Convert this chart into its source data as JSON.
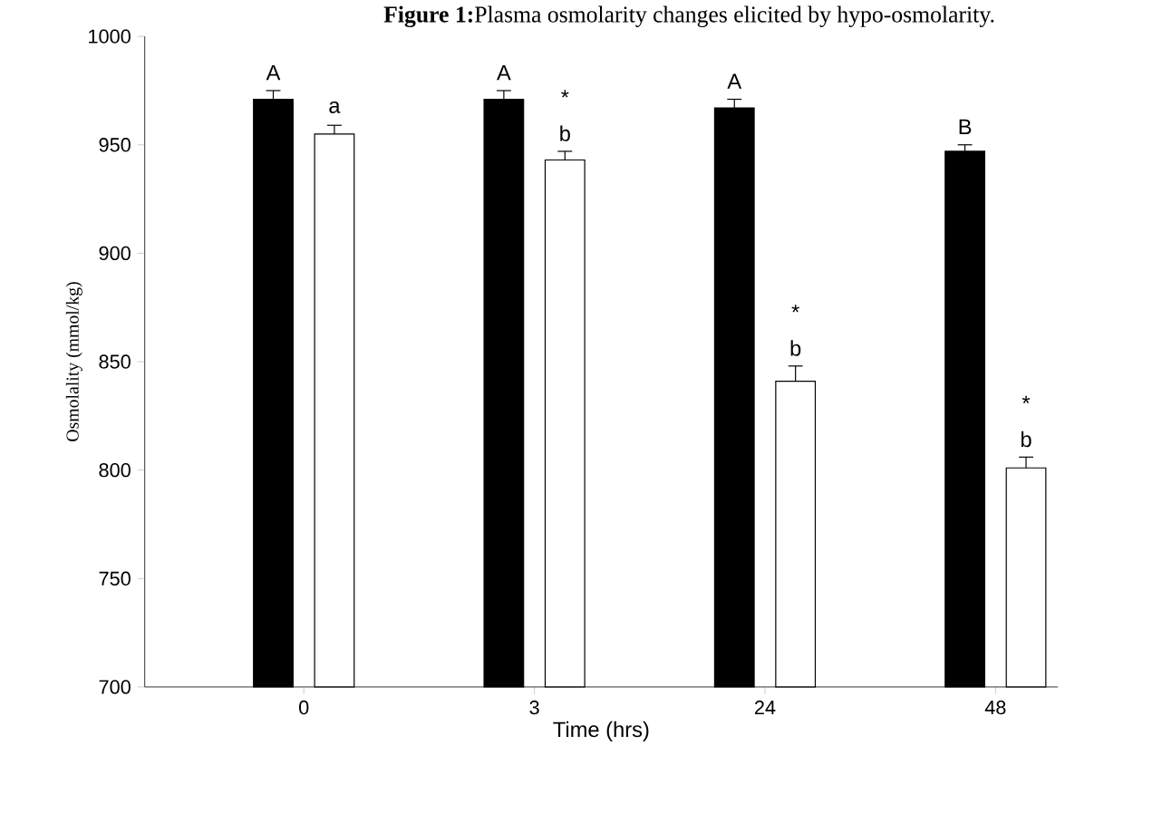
{
  "chart_data": {
    "type": "bar",
    "title": "**Figure 1:**Plasma osmolarity changes elicited by hypo-osmolarity.",
    "xlabel": "Time (hrs)",
    "ylabel": "Osmolality (mmol/kg)",
    "categories": [
      "0",
      "3",
      "24",
      "48"
    ],
    "series": [
      {
        "color": "#000000",
        "values": [
          971,
          971,
          967,
          947
        ],
        "errors": [
          4,
          4,
          4,
          3
        ]
      },
      {
        "color": "#ffffff",
        "values": [
          955,
          943,
          841,
          801
        ],
        "errors": [
          4,
          4,
          7,
          5
        ]
      }
    ],
    "ylim": [
      700,
      1000
    ],
    "yticks": [
      700,
      750,
      800,
      850,
      900,
      950,
      1000
    ],
    "annotations": [
      "A",
      "a",
      "A",
      "b",
      "*",
      "A",
      "b",
      "*",
      "B",
      "b",
      "*"
    ]
  }
}
